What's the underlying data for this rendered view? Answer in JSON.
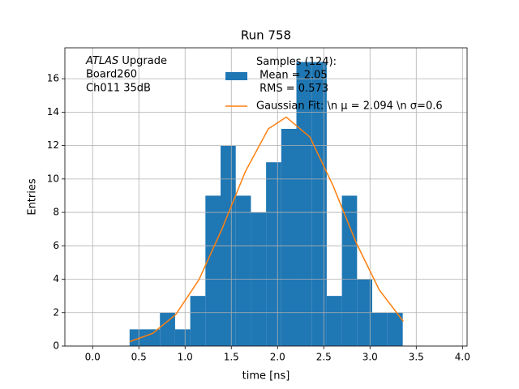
{
  "chart_data": {
    "type": "histogram",
    "title": "Run 758",
    "xlabel": "time [ns]",
    "ylabel": "Entries",
    "annotation": [
      "ATLAS Upgrade",
      " Board260",
      " Ch011 35dB"
    ],
    "bins": [
      0.4,
      0.564,
      0.728,
      0.892,
      1.056,
      1.22,
      1.384,
      1.548,
      1.712,
      1.876,
      2.04,
      2.204,
      2.368,
      2.532,
      2.696,
      2.86,
      3.024,
      3.188,
      3.354
    ],
    "values": [
      1,
      1,
      2,
      1,
      3,
      9,
      12,
      9,
      8,
      11,
      13,
      17,
      17,
      3,
      9,
      4,
      2,
      2
    ],
    "name": "Samples (124):\n Mean = 2.05\n RMS = 0.573",
    "color": "#1f77b4",
    "fit": {
      "name": "Gaussian Fit: \\n μ = 2.094 \\n σ=0.6",
      "color": "#ff7f0e",
      "x": [
        0.4,
        0.65,
        0.9,
        1.15,
        1.4,
        1.65,
        1.9,
        2.094,
        2.35,
        2.6,
        2.85,
        3.1,
        3.36
      ],
      "values": [
        0.26,
        0.76,
        1.89,
        3.97,
        7.02,
        10.42,
        13.0,
        13.7,
        12.51,
        9.6,
        6.19,
        3.36,
        1.48
      ]
    },
    "xlim": [
      -0.3,
      4.05
    ],
    "ylim": [
      0,
      17.85
    ],
    "xticks": [
      {
        "value": 0,
        "label": "0.0"
      },
      {
        "value": 0.5,
        "label": "0.5"
      },
      {
        "value": 1,
        "label": "1.0"
      },
      {
        "value": 1.5,
        "label": "1.5"
      },
      {
        "value": 2,
        "label": "2.0"
      },
      {
        "value": 2.5,
        "label": "2.5"
      },
      {
        "value": 3,
        "label": "3.0"
      },
      {
        "value": 3.5,
        "label": "3.5"
      },
      {
        "value": 4,
        "label": "4.0"
      }
    ],
    "yticks": [
      0,
      2,
      4,
      6,
      8,
      10,
      12,
      14,
      16
    ],
    "grid": true
  }
}
